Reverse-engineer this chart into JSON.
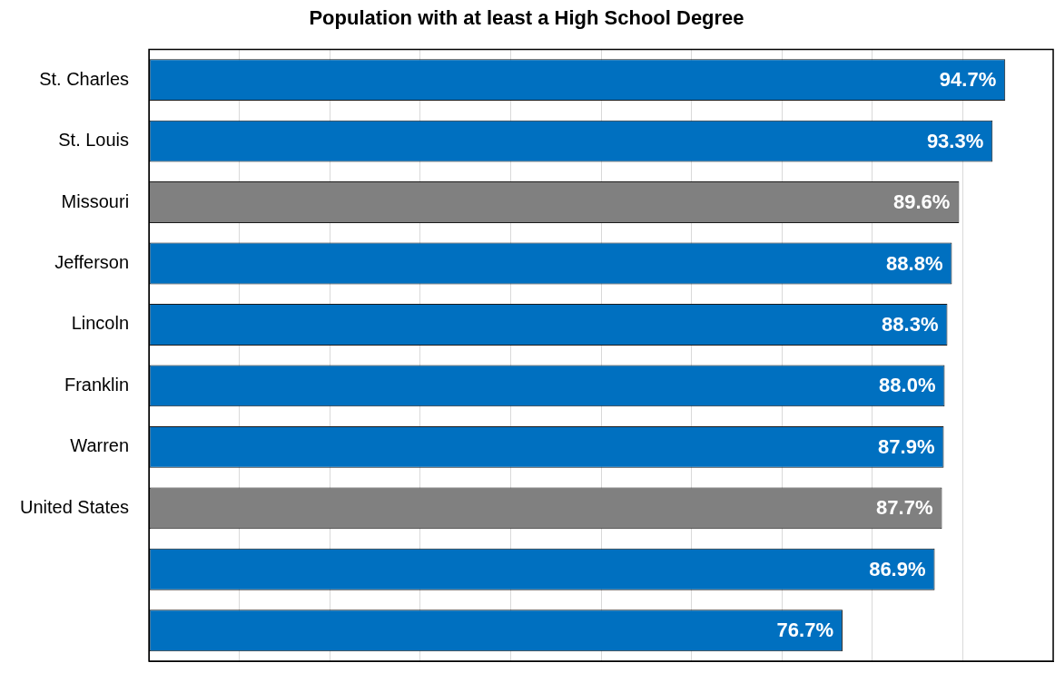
{
  "chart_data": {
    "type": "bar",
    "orientation": "horizontal",
    "title": "Population with at least a High School Degree",
    "categories": [
      "St. Charles",
      "St. Louis",
      "Missouri",
      "Jefferson",
      "Lincoln",
      "Franklin",
      "Warren",
      "United States",
      null,
      null
    ],
    "values": [
      94.7,
      93.3,
      89.6,
      88.8,
      88.3,
      88.0,
      87.9,
      87.7,
      86.9,
      76.7
    ],
    "colors": [
      "#0070c0",
      "#0070c0",
      "#808080",
      "#0070c0",
      "#0070c0",
      "#0070c0",
      "#0070c0",
      "#808080",
      "#0070c0",
      "#0070c0"
    ],
    "value_labels": [
      "94.7%",
      "93.3%",
      "89.6%",
      "88.8%",
      "88.3%",
      "88.0%",
      "87.9%",
      "87.7%",
      "86.9%",
      "76.7%"
    ],
    "xlim": [
      0,
      100
    ],
    "xticks": [
      {
        "value": 0,
        "label": null
      },
      {
        "value": 10,
        "label": null
      },
      {
        "value": 20,
        "label": null
      },
      {
        "value": 30,
        "label": null
      },
      {
        "value": 40,
        "label": null
      },
      {
        "value": 50,
        "label": null
      },
      {
        "value": 60,
        "label": null
      },
      {
        "value": 70,
        "label": null
      },
      {
        "value": 80,
        "label": null
      },
      {
        "value": 90,
        "label": null
      },
      {
        "value": 100,
        "label": null
      }
    ],
    "grid": "x",
    "tick_labels": "y",
    "legend": false
  }
}
